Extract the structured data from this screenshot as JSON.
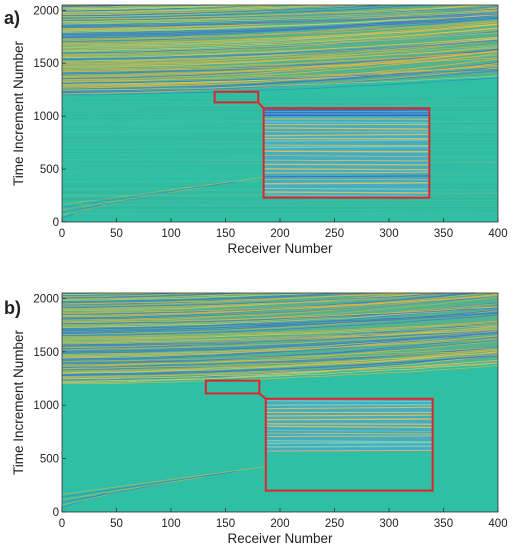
{
  "chart_data": [
    {
      "type": "heatmap",
      "panel_label": "a)",
      "xlabel": "Receiver Number",
      "ylabel": "Time Increment Number",
      "xlim": [
        0,
        400
      ],
      "ylim": [
        0,
        2050
      ],
      "xticks": [
        0,
        50,
        100,
        150,
        200,
        250,
        300,
        350,
        400
      ],
      "yticks": [
        0,
        500,
        1000,
        1500,
        2000
      ],
      "first_arrival": [
        [
          0,
          1200
        ],
        [
          100,
          1230
        ],
        [
          200,
          1275
        ],
        [
          300,
          1330
        ],
        [
          400,
          1390
        ]
      ],
      "zoom_region": {
        "x": [
          140,
          180
        ],
        "y": [
          1130,
          1230
        ]
      },
      "inset_region": {
        "x": [
          185,
          337
        ],
        "y": [
          230,
          1075
        ]
      },
      "colors": {
        "background": "#2ebfa4",
        "wave_warm": "#f0b43c",
        "wave_cool": "#3f6fd6",
        "box": "#e0252a"
      }
    },
    {
      "type": "heatmap",
      "panel_label": "b)",
      "xlabel": "Receiver Number",
      "ylabel": "Time Increment Number",
      "xlim": [
        0,
        400
      ],
      "ylim": [
        0,
        2050
      ],
      "xticks": [
        0,
        50,
        100,
        150,
        200,
        250,
        300,
        350,
        400
      ],
      "yticks": [
        0,
        500,
        1000,
        1500,
        2000
      ],
      "first_arrival": [
        [
          0,
          1200
        ],
        [
          100,
          1230
        ],
        [
          200,
          1275
        ],
        [
          300,
          1330
        ],
        [
          400,
          1390
        ]
      ],
      "zoom_region": {
        "x": [
          132,
          181
        ],
        "y": [
          1110,
          1230
        ]
      },
      "inset_region": {
        "x": [
          187,
          340
        ],
        "y": [
          200,
          1060
        ]
      },
      "colors": {
        "background": "#2ebfa4",
        "wave_warm": "#f0b43c",
        "wave_cool": "#3f6fd6",
        "box": "#e0252a"
      }
    }
  ]
}
